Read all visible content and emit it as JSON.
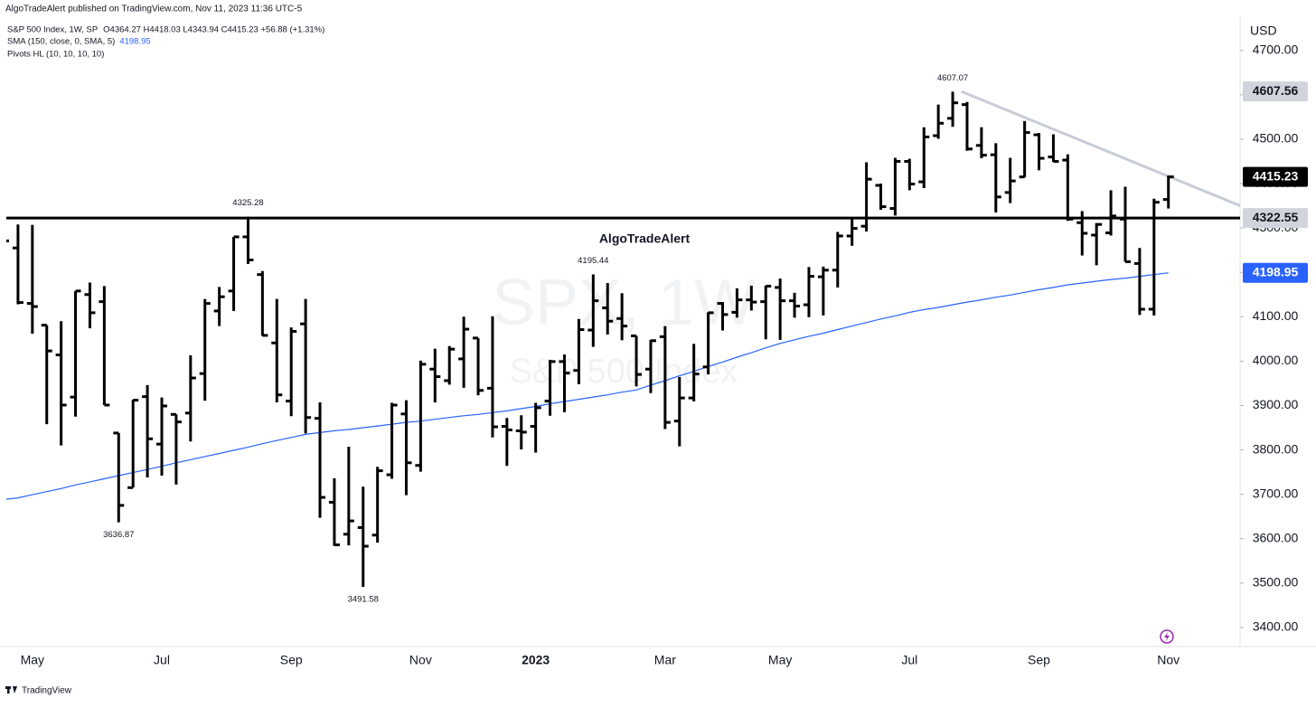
{
  "header": "AlgoTradeAlert published on TradingView.com, Nov 11, 2023 11:36 UTC-5",
  "footer": "TradingView",
  "chart_data": {
    "type": "ohlc",
    "title": "S&P 500 Index, 1W, SP",
    "ohlc_legend": "O4364.27 H4418.03 L4343.94 C4415.23 +56.88 (+1.31%)",
    "watermark": {
      "symbol": "SPX, 1W",
      "description": "S&P 500 Index"
    },
    "annotation": "AlgoTradeAlert",
    "currency": "USD",
    "color": "#000000",
    "grid": false,
    "ylim": [
      3357,
      4777
    ],
    "yticks": [
      {
        "value": 3400,
        "label": "3400.00"
      },
      {
        "value": 3500,
        "label": "3500.00"
      },
      {
        "value": 3600,
        "label": "3600.00"
      },
      {
        "value": 3700,
        "label": "3700.00"
      },
      {
        "value": 3800,
        "label": "3800.00"
      },
      {
        "value": 3900,
        "label": "3900.00"
      },
      {
        "value": 4000,
        "label": "4000.00"
      },
      {
        "value": 4100,
        "label": "4100.00"
      },
      {
        "value": 4200,
        "label": "4200.00"
      },
      {
        "value": 4300,
        "label": "4300.00"
      },
      {
        "value": 4400,
        "label": "4400.00"
      },
      {
        "value": 4500,
        "label": "4500.00"
      },
      {
        "value": 4600,
        "label": "4600.00"
      },
      {
        "value": 4700,
        "label": "4700.00"
      }
    ],
    "categories": [
      null,
      null,
      "May",
      null,
      null,
      null,
      null,
      null,
      null,
      null,
      null,
      "Jul",
      null,
      null,
      null,
      null,
      null,
      null,
      null,
      null,
      "Sep",
      null,
      null,
      null,
      null,
      null,
      null,
      null,
      null,
      "Nov",
      null,
      null,
      null,
      null,
      null,
      null,
      null,
      "2023",
      null,
      null,
      null,
      null,
      null,
      null,
      null,
      null,
      "Mar",
      null,
      null,
      null,
      null,
      null,
      null,
      null,
      "May",
      null,
      null,
      null,
      null,
      null,
      null,
      null,
      null,
      "Jul",
      null,
      null,
      null,
      null,
      null,
      null,
      null,
      null,
      "Sep",
      null,
      null,
      null,
      null,
      null,
      null,
      null,
      null,
      "Nov"
    ],
    "open": [
      4385,
      4255,
      4130,
      4081,
      4014,
      3919,
      4150,
      4134,
      3838,
      3715,
      3920,
      3813,
      3880,
      3883,
      3972,
      4113,
      4158,
      4280,
      4195,
      4041,
      3910,
      4084,
      3871,
      3682,
      3610,
      3625,
      3608,
      3744,
      3881,
      3765,
      3982,
      3956,
      4005,
      4052,
      3939,
      3853,
      3843,
      3853,
      3910,
      3999,
      3979,
      4070,
      4120,
      4096,
      4057,
      3982,
      4055,
      3865,
      3917,
      3987,
      4130,
      4110,
      4138,
      4134,
      4166,
      4136,
      4127,
      4190,
      4205,
      4282,
      4304,
      4396,
      4344,
      4450,
      4404,
      4508,
      4547,
      4578,
      4486,
      4465,
      4380,
      4415,
      4510,
      4460,
      4453,
      4312,
      4284,
      4289,
      4320,
      4220,
      4117,
      4364.27
    ],
    "high": [
      4512,
      4308,
      4307,
      4081,
      4090,
      4158,
      4177,
      4169,
      3838,
      3913,
      3946,
      3918,
      3880,
      4013,
      4140,
      4167,
      4280,
      4325.28,
      4203,
      4140,
      4076,
      4140,
      3907,
      3736,
      3807,
      3717,
      3762,
      3906,
      3912,
      4001,
      4028,
      4034,
      4100,
      4052,
      4101,
      3872,
      3878,
      3906,
      4003,
      4015,
      4095,
      4195.44,
      4176,
      4153,
      4057,
      4048,
      4079,
      3964,
      4039,
      4110,
      4133,
      4164,
      4170,
      4170,
      4186,
      4154,
      4212,
      4213,
      4291,
      4322,
      4448,
      4400,
      4458,
      4456,
      4527,
      4578,
      4607.07,
      4584,
      4527,
      4491,
      4458,
      4541,
      4514,
      4511,
      4466,
      4338,
      4311,
      4385,
      4393,
      4255,
      4366,
      4418.03
    ],
    "low": [
      4267,
      4128,
      4062,
      3858,
      3810,
      3875,
      4074,
      3901,
      3636.87,
      3715,
      3738,
      3742,
      3722,
      3819,
      3911,
      4079,
      4113,
      4219,
      4057,
      3907,
      3876,
      3837,
      3647,
      3584,
      3585,
      3491.58,
      3591,
      3735,
      3698,
      3751,
      3907,
      3947,
      3940,
      3923,
      3828,
      3764,
      3801,
      3794,
      3877,
      3885,
      3948,
      4032,
      4060,
      4047,
      3943,
      3928,
      3847,
      3808,
      3909,
      3970,
      4069,
      4098,
      4114,
      4049,
      4048,
      4098,
      4099,
      4103,
      4166,
      4260,
      4292,
      4341,
      4328,
      4385,
      4390,
      4501,
      4528,
      4474,
      4457,
      4335,
      4356,
      4414,
      4430,
      4449,
      4316,
      4238,
      4216,
      4283,
      4224,
      4104,
      4103,
      4343.94
    ],
    "close": [
      4271,
      4132,
      4123,
      4023,
      3901,
      4158,
      4109,
      3901,
      3675,
      3912,
      3825,
      3899,
      3863,
      3962,
      4130,
      4145,
      4280,
      4228,
      4058,
      3924,
      4067,
      3873,
      3693,
      3586,
      3640,
      3583,
      3753,
      3901,
      3771,
      3993,
      3965,
      4027,
      4072,
      3934,
      3852,
      3845,
      3840,
      3895,
      3999,
      3973,
      4071,
      4136,
      4090,
      4079,
      3970,
      4046,
      3862,
      3917,
      3971,
      4109,
      4105,
      4138,
      4133,
      4169,
      4136,
      4124,
      4191,
      4205,
      4282,
      4299,
      4410,
      4348,
      4450,
      4399,
      4505,
      4536,
      4582,
      4478,
      4464,
      4370,
      4406,
      4515,
      4457,
      4450,
      4320,
      4288,
      4308,
      4327,
      4224,
      4117,
      4358,
      4415.23
    ],
    "sma": {
      "name": "SMA (150, close, 0, SMA, 5)",
      "color": "#2962ff",
      "values": [
        3688,
        3692,
        3699,
        3706,
        3713,
        3721,
        3728,
        3735,
        3742,
        3749,
        3756,
        3763,
        3771,
        3778,
        3785,
        3792,
        3799,
        3806,
        3814,
        3821,
        3828,
        3835,
        3839,
        3843,
        3846,
        3850,
        3854,
        3858,
        3862,
        3865,
        3869,
        3873,
        3877,
        3880,
        3884,
        3888,
        3893,
        3898,
        3904,
        3909,
        3914,
        3919,
        3924,
        3930,
        3935,
        3946,
        3956,
        3967,
        3977,
        3988,
        3998,
        4009,
        4019,
        4030,
        4040,
        4048,
        4056,
        4063,
        4071,
        4079,
        4087,
        4095,
        4102,
        4110,
        4116,
        4121,
        4127,
        4133,
        4138,
        4144,
        4149,
        4155,
        4161,
        4166,
        4172,
        4176,
        4180,
        4184,
        4187,
        4191,
        4195,
        4198.95
      ]
    },
    "pivots_hl": {
      "name": "Pivots HL (10, 10, 10, 10)",
      "high_bars": [
        17,
        41,
        66
      ],
      "low_bars": [
        8,
        25
      ]
    },
    "hline": 4322.55,
    "trendline": {
      "x": [
        66.6,
        86
      ],
      "y": [
        4607.56,
        4350
      ],
      "color": "#c8ccd6"
    }
  }
}
